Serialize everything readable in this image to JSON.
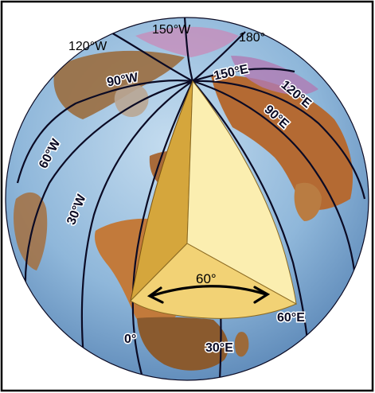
{
  "labels": {
    "lon_120W": "120°W",
    "lon_150W": "150°W",
    "lon_180": "180°",
    "lon_90W": "90°W",
    "lon_150E": "150°E",
    "lon_120E": "120°E",
    "lon_90E": "90°E",
    "lon_60W": "60°W",
    "lon_30W": "30°W",
    "lon_0": "0°",
    "lon_30E": "30°E",
    "lon_60E": "60°E",
    "angle": "60°"
  },
  "colors": {
    "ocean": "#8fb7da",
    "land": "#b46a33",
    "meridian": "#0a0a24",
    "wedge_face_light": "#fbeeb0",
    "wedge_face_dark": "#d5a63c",
    "wedge_top": "#f2d275"
  }
}
